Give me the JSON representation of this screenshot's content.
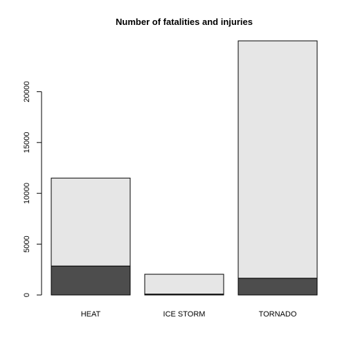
{
  "chart_data": {
    "type": "bar",
    "stacked": true,
    "title": "Number of fatalities and injuries",
    "xlabel": "",
    "ylabel": "",
    "categories": [
      "HEAT",
      "ICE STORM",
      "TORNADO"
    ],
    "series": [
      {
        "values": [
          2850,
          90,
          1650
        ],
        "color": "#4d4d4d"
      },
      {
        "values": [
          8650,
          1950,
          23350
        ],
        "color": "#e6e6e6"
      }
    ],
    "ylim": [
      0,
      25000
    ],
    "yticks": [
      0,
      5000,
      10000,
      15000,
      20000
    ],
    "ytick_labels": [
      "0",
      "5000",
      "10000",
      "15000",
      "20000"
    ],
    "grid": false,
    "legend": "none"
  }
}
